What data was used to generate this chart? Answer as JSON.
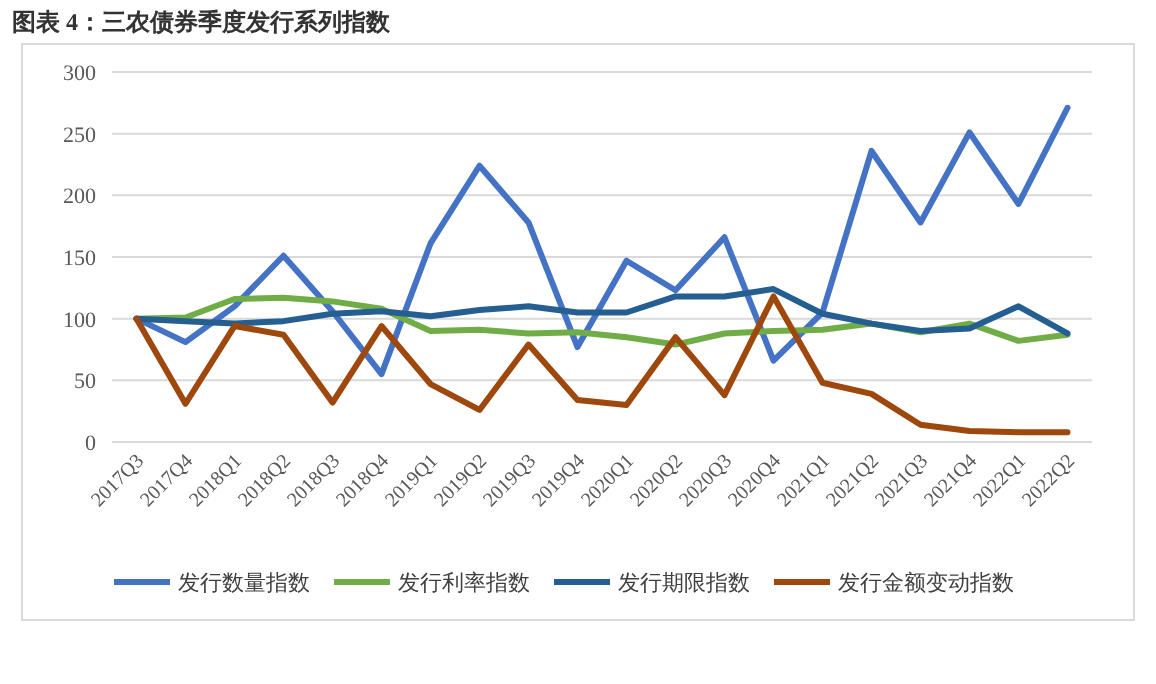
{
  "chart_data": {
    "type": "line",
    "title": "图表 4：三农债券季度发行系列指数",
    "categories": [
      "2017Q3",
      "2017Q4",
      "2018Q1",
      "2018Q2",
      "2018Q3",
      "2018Q4",
      "2019Q1",
      "2019Q2",
      "2019Q3",
      "2019Q4",
      "2020Q1",
      "2020Q2",
      "2020Q3",
      "2020Q4",
      "2021Q1",
      "2021Q2",
      "2021Q3",
      "2021Q4",
      "2022Q1",
      "2022Q2"
    ],
    "series": [
      {
        "name": "发行数量指数",
        "color": "#4472c4",
        "values": [
          100,
          81,
          110,
          151,
          106,
          55,
          161,
          224,
          178,
          77,
          147,
          123,
          166,
          66,
          105,
          236,
          178,
          251,
          193,
          271
        ]
      },
      {
        "name": "发行利率指数",
        "color": "#70ad47",
        "values": [
          100,
          101,
          116,
          117,
          114,
          108,
          90,
          91,
          88,
          89,
          85,
          79,
          88,
          90,
          91,
          96,
          89,
          96,
          82,
          87
        ]
      },
      {
        "name": "发行期限指数",
        "color": "#255e91",
        "values": [
          100,
          98,
          96,
          98,
          104,
          106,
          102,
          107,
          110,
          105,
          105,
          118,
          118,
          124,
          104,
          96,
          90,
          92,
          110,
          88
        ]
      },
      {
        "name": "发行金额变动指数",
        "color": "#9e480e",
        "values": [
          100,
          31,
          94,
          87,
          32,
          94,
          47,
          26,
          79,
          34,
          30,
          85,
          38,
          118,
          48,
          39,
          14,
          9,
          8,
          8
        ]
      }
    ],
    "ylim": [
      0,
      300
    ],
    "yticks": [
      0,
      50,
      100,
      150,
      200,
      250,
      300
    ],
    "grid": "y",
    "legend": "bottom",
    "line_style": "solid",
    "marker": "none"
  }
}
